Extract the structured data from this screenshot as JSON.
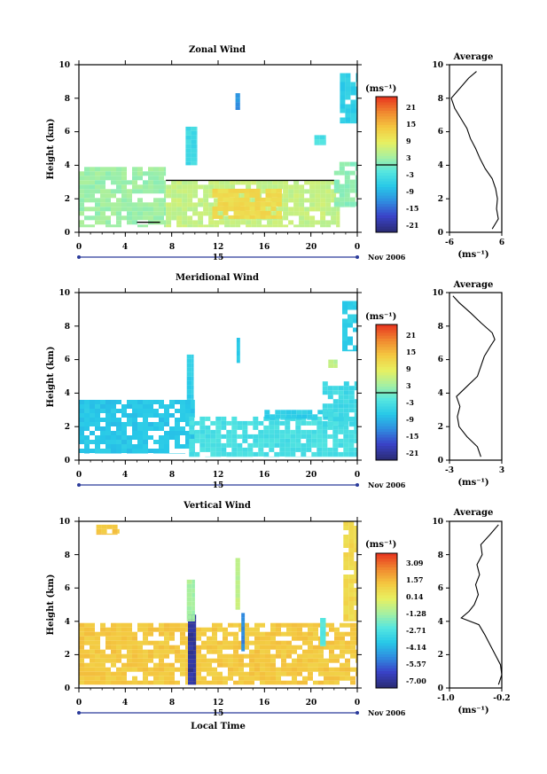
{
  "figure": {
    "panels": [
      {
        "title": "Zonal Wind",
        "ylabel": "Height (km)",
        "x_ticks": [
          "0",
          "4",
          "8",
          "12",
          "16",
          "20",
          "0"
        ],
        "y_ticks": [
          "0",
          "2",
          "4",
          "6",
          "8",
          "10"
        ],
        "date_day": "15",
        "date_label": "Nov 2006",
        "colorbar_unit": "(ms⁻¹)",
        "colorbar_labels": [
          "21",
          "15",
          "9",
          "3",
          "-3",
          "-9",
          "-15",
          "-21"
        ],
        "avg_title": "Average",
        "avg_x_ticks": [
          "-6",
          "6"
        ],
        "avg_y_ticks": [
          "0",
          "2",
          "4",
          "6",
          "8",
          "10"
        ],
        "avg_unit": "(ms⁻¹)"
      },
      {
        "title": "Meridional Wind",
        "ylabel": "Height (km)",
        "x_ticks": [
          "0",
          "4",
          "8",
          "12",
          "16",
          "20",
          "0"
        ],
        "y_ticks": [
          "0",
          "2",
          "4",
          "6",
          "8",
          "10"
        ],
        "date_day": "15",
        "date_label": "Nov 2006",
        "colorbar_unit": "(ms⁻¹)",
        "colorbar_labels": [
          "21",
          "15",
          "9",
          "3",
          "-3",
          "-9",
          "-15",
          "-21"
        ],
        "avg_title": "Average",
        "avg_x_ticks": [
          "-3",
          "3"
        ],
        "avg_y_ticks": [
          "0",
          "2",
          "4",
          "6",
          "8",
          "10"
        ],
        "avg_unit": "(ms⁻¹)"
      },
      {
        "title": "Vertical Wind",
        "ylabel": "Height (km)",
        "x_ticks": [
          "0",
          "4",
          "8",
          "12",
          "16",
          "20",
          "0"
        ],
        "y_ticks": [
          "0",
          "2",
          "4",
          "6",
          "8",
          "10"
        ],
        "date_day": "15",
        "date_label": "Nov 2006",
        "xlabel": "Local Time",
        "colorbar_unit": "(ms⁻¹)",
        "colorbar_labels": [
          "3.09",
          "1.57",
          "0.14",
          "-1.28",
          "-2.71",
          "-4.14",
          "-5.57",
          "-7.00"
        ],
        "avg_title": "Average",
        "avg_x_ticks": [
          "-1.0",
          "-0.2"
        ],
        "avg_y_ticks": [
          "0",
          "2",
          "4",
          "6",
          "8",
          "10"
        ],
        "avg_unit": "(ms⁻¹)"
      }
    ]
  },
  "chart_data": [
    {
      "type": "heatmap",
      "title": "Zonal Wind",
      "xlabel": "",
      "ylabel": "Height (km)",
      "xlim": [
        0,
        24
      ],
      "ylim": [
        0,
        10
      ],
      "x_tick_values": [
        0,
        4,
        8,
        12,
        16,
        20,
        24
      ],
      "colorbar": {
        "unit": "ms-1",
        "range": [
          -24,
          24
        ],
        "labels": [
          21,
          15,
          9,
          3,
          -3,
          -9,
          -15,
          -21
        ]
      },
      "regions": [
        {
          "x": [
            0,
            7.5
          ],
          "y": [
            0.3,
            3.9
          ],
          "value": 2
        },
        {
          "x": [
            7.5,
            22.5
          ],
          "y": [
            0.3,
            3.1
          ],
          "value": 5
        },
        {
          "x": [
            11.5,
            17.5
          ],
          "y": [
            0.8,
            2.6
          ],
          "value": 11
        },
        {
          "x": [
            9.2,
            10.2
          ],
          "y": [
            4.0,
            6.3
          ],
          "value": -5
        },
        {
          "x": [
            13.5,
            13.9
          ],
          "y": [
            7.3,
            8.3
          ],
          "value": -13
        },
        {
          "x": [
            20.3,
            21.3
          ],
          "y": [
            5.2,
            5.8
          ],
          "value": -4
        },
        {
          "x": [
            22.5,
            24
          ],
          "y": [
            6.5,
            9.5
          ],
          "value": -7
        },
        {
          "x": [
            22.0,
            24
          ],
          "y": [
            1.5,
            4.2
          ],
          "value": 1
        }
      ],
      "contour_segments": [
        {
          "x": [
            7.5,
            22.0
          ],
          "y": [
            3.1,
            3.1
          ]
        },
        {
          "x": [
            5.0,
            7.0
          ],
          "y": [
            0.6,
            0.6
          ]
        }
      ],
      "average": {
        "xlim": [
          -6,
          6
        ],
        "height": [
          0.2,
          0.8,
          1.4,
          2.0,
          2.6,
          3.2,
          3.8,
          4.4,
          5.0,
          5.6,
          6.2,
          6.8,
          7.4,
          8.0,
          8.6,
          9.2,
          9.6
        ],
        "value": [
          3.8,
          5.2,
          4.8,
          5.0,
          4.6,
          3.8,
          2.2,
          1.0,
          0.0,
          -1.2,
          -2.0,
          -3.4,
          -4.8,
          -5.6,
          -3.6,
          -1.6,
          0.2
        ]
      }
    },
    {
      "type": "heatmap",
      "title": "Meridional Wind",
      "xlabel": "",
      "ylabel": "Height (km)",
      "xlim": [
        0,
        24
      ],
      "ylim": [
        0,
        10
      ],
      "x_tick_values": [
        0,
        4,
        8,
        12,
        16,
        20,
        24
      ],
      "colorbar": {
        "unit": "ms-1",
        "range": [
          -24,
          24
        ],
        "labels": [
          21,
          15,
          9,
          3,
          -3,
          -9,
          -15,
          -21
        ]
      },
      "regions": [
        {
          "x": [
            0,
            10.0
          ],
          "y": [
            0.4,
            3.6
          ],
          "value": -8
        },
        {
          "x": [
            9.5,
            24
          ],
          "y": [
            0.2,
            2.6
          ],
          "value": -4
        },
        {
          "x": [
            16.0,
            22.0
          ],
          "y": [
            2.4,
            3.0
          ],
          "value": -7
        },
        {
          "x": [
            21.0,
            24
          ],
          "y": [
            2.0,
            4.7
          ],
          "value": -5
        },
        {
          "x": [
            9.3,
            9.9
          ],
          "y": [
            3.6,
            6.3
          ],
          "value": -7
        },
        {
          "x": [
            13.6,
            13.9
          ],
          "y": [
            5.8,
            7.3
          ],
          "value": -8
        },
        {
          "x": [
            22.7,
            24
          ],
          "y": [
            6.5,
            9.5
          ],
          "value": -7
        },
        {
          "x": [
            21.5,
            22.3
          ],
          "y": [
            5.5,
            6.0
          ],
          "value": 4
        }
      ],
      "contour_segments": [],
      "average": {
        "xlim": [
          -3,
          3
        ],
        "height": [
          0.2,
          0.8,
          1.4,
          2.0,
          2.6,
          3.2,
          3.8,
          4.4,
          5.0,
          5.6,
          6.2,
          6.8,
          7.2,
          7.6,
          8.2,
          8.8,
          9.4,
          9.8
        ],
        "value": [
          0.6,
          0.2,
          -1.0,
          -1.9,
          -2.1,
          -1.8,
          -2.2,
          -1.0,
          0.2,
          0.6,
          1.0,
          1.7,
          2.2,
          1.9,
          0.6,
          -0.6,
          -1.9,
          -2.6
        ]
      }
    },
    {
      "type": "heatmap",
      "title": "Vertical Wind",
      "xlabel": "Local Time",
      "ylabel": "Height (km)",
      "xlim": [
        0,
        24
      ],
      "ylim": [
        0,
        10
      ],
      "x_tick_values": [
        0,
        4,
        8,
        12,
        16,
        20,
        24
      ],
      "colorbar": {
        "unit": "ms-1",
        "range": [
          -7.0,
          3.09
        ],
        "labels": [
          3.09,
          1.57,
          0.14,
          -1.28,
          -2.71,
          -4.14,
          -5.57,
          -7.0
        ]
      },
      "regions": [
        {
          "x": [
            0,
            24
          ],
          "y": [
            0.2,
            3.9
          ],
          "value": 0.8
        },
        {
          "x": [
            9.4,
            10.1
          ],
          "y": [
            0.2,
            4.4
          ],
          "value": -6.5
        },
        {
          "x": [
            14.0,
            14.3
          ],
          "y": [
            2.2,
            4.5
          ],
          "value": -4.8
        },
        {
          "x": [
            9.3,
            10.0
          ],
          "y": [
            4.0,
            6.5
          ],
          "value": -1.4
        },
        {
          "x": [
            13.5,
            13.9
          ],
          "y": [
            4.7,
            7.8
          ],
          "value": -1.0
        },
        {
          "x": [
            20.8,
            21.3
          ],
          "y": [
            2.5,
            4.2
          ],
          "value": -2.4
        },
        {
          "x": [
            22.8,
            24
          ],
          "y": [
            4.0,
            10.0
          ],
          "value": 0.4
        },
        {
          "x": [
            1.5,
            3.5
          ],
          "y": [
            9.2,
            9.8
          ],
          "value": 0.9
        }
      ],
      "contour_segments": [],
      "average": {
        "xlim": [
          -1.0,
          -0.2
        ],
        "height": [
          0.2,
          0.8,
          1.4,
          2.0,
          2.6,
          3.2,
          3.8,
          4.2,
          4.6,
          5.0,
          5.6,
          6.2,
          6.8,
          7.4,
          8.0,
          8.6,
          9.2,
          9.8
        ],
        "value": [
          -0.25,
          -0.2,
          -0.22,
          -0.3,
          -0.38,
          -0.46,
          -0.55,
          -0.82,
          -0.7,
          -0.62,
          -0.56,
          -0.6,
          -0.54,
          -0.58,
          -0.5,
          -0.52,
          -0.38,
          -0.25
        ]
      }
    }
  ]
}
